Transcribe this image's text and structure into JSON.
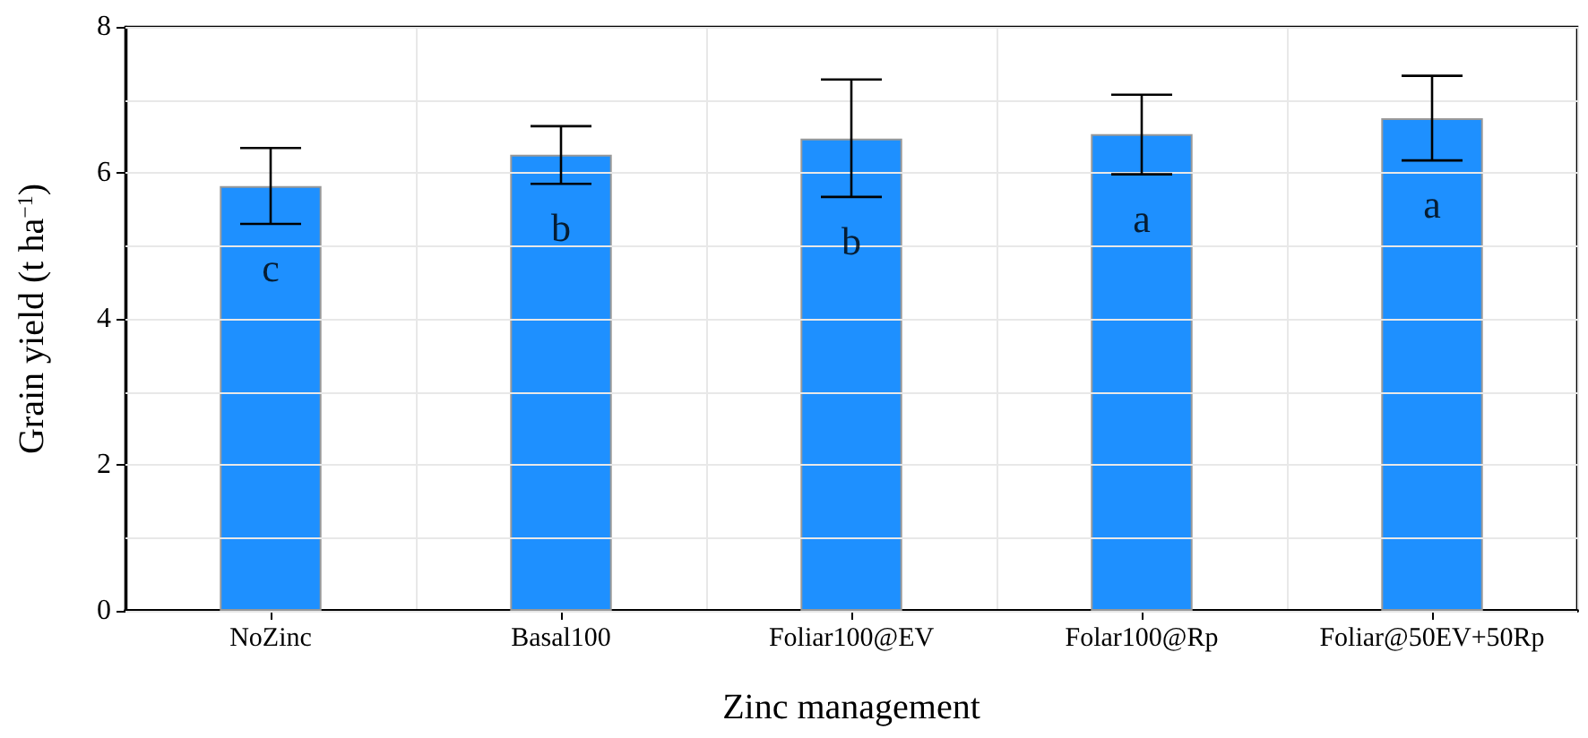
{
  "chart_data": {
    "type": "bar",
    "xlabel": "Zinc management",
    "ylabel": "Grain yield (t ha$^{−1}$)",
    "categories": [
      "NoZinc",
      "Basal100",
      "Foliar100@EV",
      "Folar100@Rp",
      "Foliar@50EV+50Rp"
    ],
    "values": [
      5.82,
      6.25,
      6.47,
      6.53,
      6.75
    ],
    "color": "#1e90ff",
    "errors": [
      [
        5.3,
        6.34
      ],
      [
        5.85,
        6.64
      ],
      [
        5.67,
        7.28
      ],
      [
        5.98,
        7.07
      ],
      [
        6.17,
        7.33
      ]
    ],
    "ylim": [
      0,
      8
    ],
    "yticks": [
      0,
      {
        "value": 1,
        "label": null
      },
      2,
      {
        "value": 3,
        "label": null
      },
      4,
      {
        "value": 5,
        "label": null
      },
      6,
      {
        "value": 7,
        "label": null
      },
      8
    ],
    "grid": true,
    "annotations": [
      "c",
      "b",
      "b",
      "a",
      "a"
    ]
  }
}
